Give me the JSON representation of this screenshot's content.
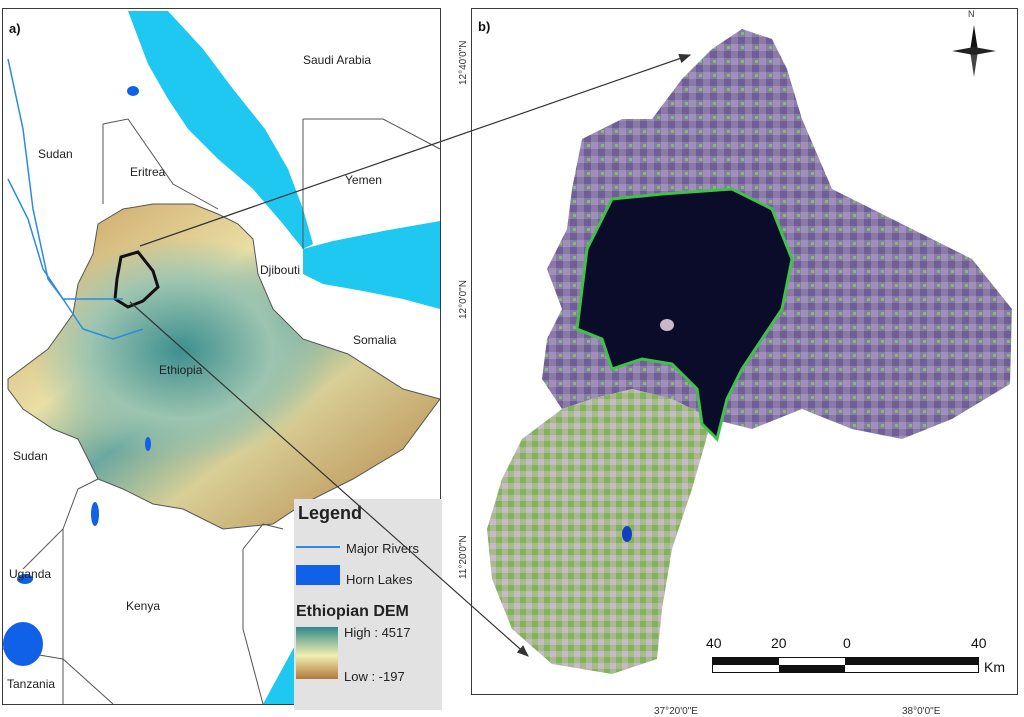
{
  "panel_a": {
    "label": "a)",
    "countries": {
      "saudi_arabia": "Saudi Arabia",
      "sudan_north": "Sudan",
      "eritrea": "Eritrea",
      "yemen": "Yemen",
      "djibouti": "Djibouti",
      "somalia": "Somalia",
      "ethiopia": "Ethiopia",
      "sudan_south": "Sudan",
      "uganda": "Uganda",
      "kenya": "Kenya",
      "tanzania": "Tanzania"
    },
    "legend": {
      "title": "Legend",
      "rivers": "Major Rivers",
      "lakes": "Horn Lakes",
      "dem_title": "Ethiopian DEM",
      "high": "High : 4517",
      "low": "Low : -197"
    }
  },
  "panel_b": {
    "label": "b)",
    "lat_labels": [
      "12°40'0\"N",
      "12°0'0\"N",
      "11°20'0\"N"
    ],
    "lon_labels": [
      "37°20'0\"E",
      "38°0'0\"E"
    ],
    "north_label": "N",
    "scalebar": {
      "ticks": [
        "40",
        "20",
        "0",
        "40"
      ],
      "unit": "Km"
    }
  },
  "colors": {
    "water": "#1ec8f0",
    "lake_blue": "#1060e8",
    "dem_high": "#2f8a8a",
    "dem_mid": "#f3efb2",
    "dem_low": "#b07a3c",
    "lake_tana": "#0b0b2a"
  }
}
